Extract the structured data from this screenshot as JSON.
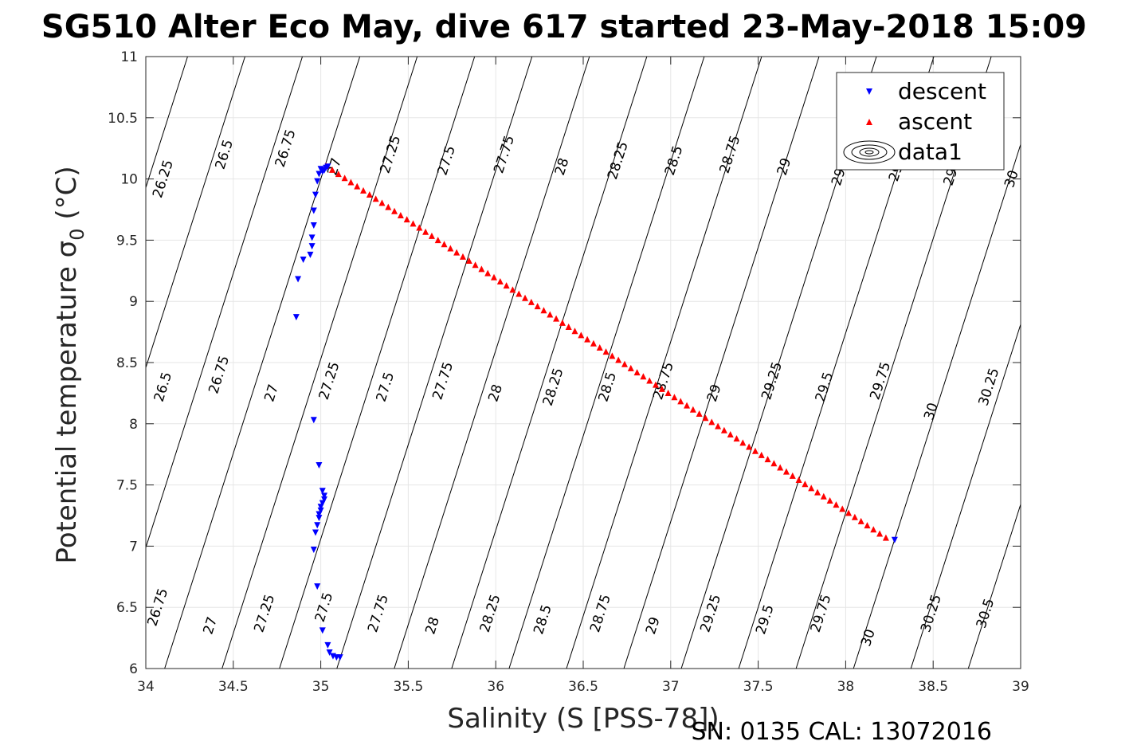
{
  "title": "SG510 Alter Eco May, dive 617 started 23-May-2018 15:09",
  "footer": "SN: 0135  CAL: 13072016",
  "chart_data": {
    "type": "scatter",
    "xlabel": "Salinity (S [PSS-78])",
    "ylabel": "Potential temperature σ",
    "ylabel_sub": "0",
    "ylabel_unit": " (°C)",
    "xlim": [
      34,
      39
    ],
    "ylim": [
      6,
      11
    ],
    "xticks": [
      "34",
      "34.5",
      "35",
      "35.5",
      "36",
      "36.5",
      "37",
      "37.5",
      "38",
      "38.5",
      "39"
    ],
    "yticks": [
      "6",
      "6.5",
      "7",
      "7.5",
      "8",
      "8.5",
      "9",
      "9.5",
      "10",
      "10.5",
      "11"
    ],
    "grid": true,
    "legend_position": "top-right",
    "legend": [
      "descent",
      "ascent",
      "data1"
    ],
    "colors": {
      "descent": "#0000ff",
      "ascent": "#ff0000",
      "contour": "#000000"
    },
    "contour_levels": [
      26.25,
      26.5,
      26.75,
      27,
      27.25,
      27.5,
      27.75,
      28,
      28.25,
      28.5,
      28.75,
      29,
      29.25,
      29.5,
      29.75,
      30,
      30.25,
      30.5
    ],
    "contour_labels": [
      {
        "text": "26.25",
        "x": 34.1,
        "y": 10.0
      },
      {
        "text": "26.5",
        "x": 34.45,
        "y": 10.2
      },
      {
        "text": "26.75",
        "x": 34.8,
        "y": 10.25
      },
      {
        "text": "27",
        "x": 35.08,
        "y": 10.1
      },
      {
        "text": "27.25",
        "x": 35.4,
        "y": 10.2
      },
      {
        "text": "27.5",
        "x": 35.72,
        "y": 10.15
      },
      {
        "text": "27.75",
        "x": 36.05,
        "y": 10.2
      },
      {
        "text": "28",
        "x": 36.38,
        "y": 10.1
      },
      {
        "text": "28.25",
        "x": 36.7,
        "y": 10.15
      },
      {
        "text": "28.5",
        "x": 37.02,
        "y": 10.15
      },
      {
        "text": "28.75",
        "x": 37.34,
        "y": 10.2
      },
      {
        "text": "29",
        "x": 37.65,
        "y": 10.1
      },
      {
        "text": "29.25",
        "x": 37.98,
        "y": 10.1
      },
      {
        "text": "29.5",
        "x": 38.3,
        "y": 10.1
      },
      {
        "text": "29.75",
        "x": 38.62,
        "y": 10.1
      },
      {
        "text": "30",
        "x": 38.95,
        "y": 10.0
      },
      {
        "text": "26.5",
        "x": 34.1,
        "y": 8.3
      },
      {
        "text": "26.75",
        "x": 34.42,
        "y": 8.4
      },
      {
        "text": "27",
        "x": 34.72,
        "y": 8.25
      },
      {
        "text": "27.25",
        "x": 35.05,
        "y": 8.35
      },
      {
        "text": "27.5",
        "x": 35.37,
        "y": 8.3
      },
      {
        "text": "27.75",
        "x": 35.7,
        "y": 8.35
      },
      {
        "text": "28",
        "x": 36.0,
        "y": 8.25
      },
      {
        "text": "28.25",
        "x": 36.33,
        "y": 8.3
      },
      {
        "text": "28.5",
        "x": 36.64,
        "y": 8.3
      },
      {
        "text": "28.75",
        "x": 36.96,
        "y": 8.35
      },
      {
        "text": "29",
        "x": 37.25,
        "y": 8.25
      },
      {
        "text": "29.25",
        "x": 37.58,
        "y": 8.35
      },
      {
        "text": "29.5",
        "x": 37.88,
        "y": 8.3
      },
      {
        "text": "29.75",
        "x": 38.2,
        "y": 8.35
      },
      {
        "text": "30",
        "x": 38.49,
        "y": 8.1
      },
      {
        "text": "30.25",
        "x": 38.82,
        "y": 8.3
      },
      {
        "text": "26.75",
        "x": 34.07,
        "y": 6.5
      },
      {
        "text": "27",
        "x": 34.37,
        "y": 6.35
      },
      {
        "text": "27.25",
        "x": 34.68,
        "y": 6.45
      },
      {
        "text": "27.5",
        "x": 35.02,
        "y": 6.5
      },
      {
        "text": "27.75",
        "x": 35.33,
        "y": 6.45
      },
      {
        "text": "28",
        "x": 35.64,
        "y": 6.35
      },
      {
        "text": "28.25",
        "x": 35.97,
        "y": 6.45
      },
      {
        "text": "28.5",
        "x": 36.27,
        "y": 6.4
      },
      {
        "text": "28.75",
        "x": 36.6,
        "y": 6.45
      },
      {
        "text": "29",
        "x": 36.9,
        "y": 6.35
      },
      {
        "text": "29.25",
        "x": 37.23,
        "y": 6.45
      },
      {
        "text": "29.5",
        "x": 37.54,
        "y": 6.4
      },
      {
        "text": "29.75",
        "x": 37.86,
        "y": 6.45
      },
      {
        "text": "30",
        "x": 38.13,
        "y": 6.25
      },
      {
        "text": "30.25",
        "x": 38.49,
        "y": 6.45
      },
      {
        "text": "30.5",
        "x": 38.8,
        "y": 6.45
      }
    ],
    "series": [
      {
        "name": "descent",
        "marker": "triangle-down",
        "points": [
          [
            35.0,
            10.08
          ],
          [
            35.02,
            10.07
          ],
          [
            35.03,
            10.09
          ],
          [
            35.04,
            10.1
          ],
          [
            35.01,
            10.06
          ],
          [
            34.99,
            10.04
          ],
          [
            34.98,
            9.98
          ],
          [
            34.97,
            9.87
          ],
          [
            34.96,
            9.74
          ],
          [
            34.96,
            9.62
          ],
          [
            34.95,
            9.52
          ],
          [
            34.95,
            9.45
          ],
          [
            34.94,
            9.38
          ],
          [
            34.9,
            9.34
          ],
          [
            34.87,
            9.18
          ],
          [
            34.86,
            8.87
          ],
          [
            34.96,
            8.03
          ],
          [
            34.99,
            7.66
          ],
          [
            35.01,
            7.45
          ],
          [
            35.02,
            7.41
          ],
          [
            35.02,
            7.38
          ],
          [
            35.01,
            7.35
          ],
          [
            35.0,
            7.32
          ],
          [
            35.0,
            7.29
          ],
          [
            34.99,
            7.26
          ],
          [
            34.99,
            7.23
          ],
          [
            34.98,
            7.17
          ],
          [
            34.97,
            7.11
          ],
          [
            34.96,
            6.97
          ],
          [
            34.98,
            6.67
          ],
          [
            35.01,
            6.31
          ],
          [
            35.04,
            6.19
          ],
          [
            35.05,
            6.13
          ],
          [
            35.07,
            6.1
          ],
          [
            35.09,
            6.09
          ],
          [
            35.11,
            6.09
          ],
          [
            38.28,
            7.05
          ]
        ]
      },
      {
        "name": "ascent",
        "marker": "triangle-up",
        "points": "linear:35.03,10.11,38.23,7.07,91"
      }
    ]
  }
}
